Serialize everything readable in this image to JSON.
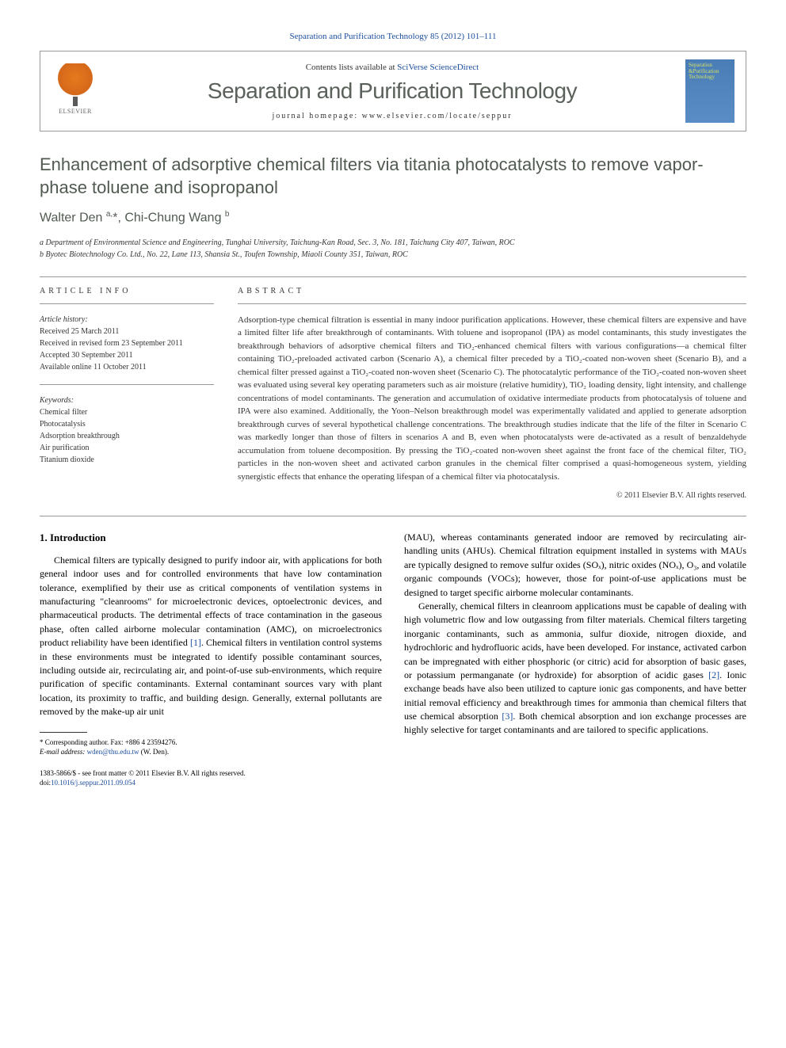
{
  "header": {
    "citation_journal": "Separation and Purification Technology",
    "citation_ref": "85 (2012) 101–111",
    "contents_line_prefix": "Contents lists available at ",
    "contents_link": "SciVerse ScienceDirect",
    "journal_name": "Separation and Purification Technology",
    "homepage_label": "journal homepage: ",
    "homepage_url": "www.elsevier.com/locate/seppur",
    "publisher": "ELSEVIER",
    "cover_line1": "Separation",
    "cover_line2": "&Purification",
    "cover_line3": "Technology"
  },
  "article": {
    "title": "Enhancement of adsorptive chemical filters via titania photocatalysts to remove vapor-phase toluene and isopropanol",
    "authors_html": "Walter Den <sup>a,</sup>*, Chi-Chung Wang <sup>b</sup>",
    "aff_a": "a Department of Environmental Science and Engineering, Tunghai University, Taichung-Kan Road, Sec. 3, No. 181, Taichung City 407, Taiwan, ROC",
    "aff_b": "b Byotec Biotechnology Co. Ltd., No. 22, Lane 113, Shansia St., Toufen Township, Miaoli County 351, Taiwan, ROC"
  },
  "info": {
    "section_label": "ARTICLE INFO",
    "history_label": "Article history:",
    "received": "Received 25 March 2011",
    "revised": "Received in revised form 23 September 2011",
    "accepted": "Accepted 30 September 2011",
    "online": "Available online 11 October 2011",
    "keywords_label": "Keywords:",
    "keywords": [
      "Chemical filter",
      "Photocatalysis",
      "Adsorption breakthrough",
      "Air purification",
      "Titanium dioxide"
    ]
  },
  "abstract": {
    "section_label": "ABSTRACT",
    "text": "Adsorption-type chemical filtration is essential in many indoor purification applications. However, these chemical filters are expensive and have a limited filter life after breakthrough of contaminants. With toluene and isopropanol (IPA) as model contaminants, this study investigates the breakthrough behaviors of adsorptive chemical filters and TiO₂-enhanced chemical filters with various configurations—a chemical filter containing TiO₂-preloaded activated carbon (Scenario A), a chemical filter preceded by a TiO₂-coated non-woven sheet (Scenario B), and a chemical filter pressed against a TiO₂-coated non-woven sheet (Scenario C). The photocatalytic performance of the TiO₂-coated non-woven sheet was evaluated using several key operating parameters such as air moisture (relative humidity), TiO₂ loading density, light intensity, and challenge concentrations of model contaminants. The generation and accumulation of oxidative intermediate products from photocatalysis of toluene and IPA were also examined. Additionally, the Yoon–Nelson breakthrough model was experimentally validated and applied to generate adsorption breakthrough curves of several hypothetical challenge concentrations. The breakthrough studies indicate that the life of the filter in Scenario C was markedly longer than those of filters in scenarios A and B, even when photocatalysts were de-activated as a result of benzaldehyde accumulation from toluene decomposition. By pressing the TiO₂-coated non-woven sheet against the front face of the chemical filter, TiO₂ particles in the non-woven sheet and activated carbon granules in the chemical filter comprised a quasi-homogeneous system, yielding synergistic effects that enhance the operating lifespan of a chemical filter via photocatalysis.",
    "copyright": "© 2011 Elsevier B.V. All rights reserved."
  },
  "body": {
    "intro_heading": "1. Introduction",
    "col1_p1": "Chemical filters are typically designed to purify indoor air, with applications for both general indoor uses and for controlled environments that have low contamination tolerance, exemplified by their use as critical components of ventilation systems in manufacturing \"cleanrooms\" for microelectronic devices, optoelectronic devices, and pharmaceutical products. The detrimental effects of trace contamination in the gaseous phase, often called airborne molecular contamination (AMC), on microelectronics product reliability have been identified [1]. Chemical filters in ventilation control systems in these environments must be integrated to identify possible contaminant sources, including outside air, recirculating air, and point-of-use sub-environments, which require purification of specific contaminants. External contaminant sources vary with plant location, its proximity to traffic, and building design. Generally, external pollutants are removed by the make-up air unit",
    "col2_p1": "(MAU), whereas contaminants generated indoor are removed by recirculating air-handling units (AHUs). Chemical filtration equipment installed in systems with MAUs are typically designed to remove sulfur oxides (SOₓ), nitric oxides (NOₓ), O₃, and volatile organic compounds (VOCs); however, those for point-of-use applications must be designed to target specific airborne molecular contaminants.",
    "col2_p2": "Generally, chemical filters in cleanroom applications must be capable of dealing with high volumetric flow and low outgassing from filter materials. Chemical filters targeting inorganic contaminants, such as ammonia, sulfur dioxide, nitrogen dioxide, and hydrochloric and hydrofluoric acids, have been developed. For instance, activated carbon can be impregnated with either phosphoric (or citric) acid for absorption of basic gases, or potassium permanganate (or hydroxide) for absorption of acidic gases [2]. Ionic exchange beads have also been utilized to capture ionic gas components, and have better initial removal efficiency and breakthrough times for ammonia than chemical filters that use chemical absorption [3]. Both chemical absorption and ion exchange processes are highly selective for target contaminants and are tailored to specific applications."
  },
  "footnote": {
    "corr_label": "* Corresponding author. Fax: +886 4 23594276.",
    "email_label": "E-mail address: ",
    "email": "wden@thu.edu.tw",
    "email_suffix": " (W. Den)."
  },
  "footer": {
    "issn": "1383-5866/$ - see front matter © 2011 Elsevier B.V. All rights reserved.",
    "doi_label": "doi:",
    "doi": "10.1016/j.seppur.2011.09.054"
  },
  "colors": {
    "link": "#1a4d9e",
    "heading": "#505a50",
    "text": "#333333",
    "border": "#999999"
  }
}
